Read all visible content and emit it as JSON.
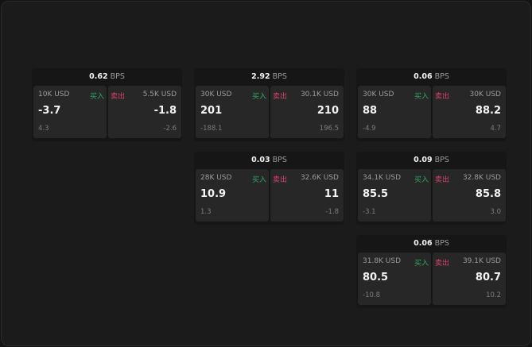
{
  "labels": {
    "buy": "买入",
    "sell": "卖出",
    "unit": "BPS"
  },
  "colors": {
    "buy": "#2fa866",
    "sell": "#d9426a"
  },
  "cards": [
    {
      "spread": "0.62",
      "buy": {
        "qty": "10K USD",
        "price": "-3.7",
        "change": "4.3"
      },
      "sell": {
        "qty": "5.5K USD",
        "price": "-1.8",
        "change": "-2.6"
      }
    },
    {
      "spread": "2.92",
      "buy": {
        "qty": "30K USD",
        "price": "201",
        "change": "-188.1"
      },
      "sell": {
        "qty": "30.1K USD",
        "price": "210",
        "change": "196.5"
      }
    },
    {
      "spread": "0.06",
      "buy": {
        "qty": "30K USD",
        "price": "88",
        "change": "-4.9"
      },
      "sell": {
        "qty": "30K USD",
        "price": "88.2",
        "change": "4.7"
      }
    },
    {
      "spread": "0.03",
      "buy": {
        "qty": "28K USD",
        "price": "10.9",
        "change": "1.3"
      },
      "sell": {
        "qty": "32.6K USD",
        "price": "11",
        "change": "-1.8"
      }
    },
    {
      "spread": "0.09",
      "buy": {
        "qty": "34.1K USD",
        "price": "85.5",
        "change": "-3.1"
      },
      "sell": {
        "qty": "32.8K USD",
        "price": "85.8",
        "change": "3.0"
      }
    },
    {
      "spread": "0.06",
      "buy": {
        "qty": "31.8K USD",
        "price": "80.5",
        "change": "-10.8"
      },
      "sell": {
        "qty": "39.1K USD",
        "price": "80.7",
        "change": "10.2"
      }
    }
  ]
}
